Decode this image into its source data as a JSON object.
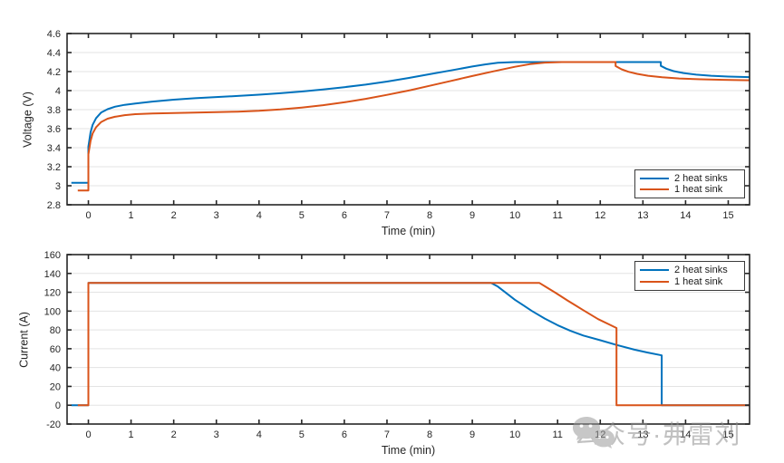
{
  "figure": {
    "background": "#ffffff"
  },
  "watermark": {
    "text": "公众号·弗雷刘",
    "icon": "wechat-bubbles-icon",
    "color": "#8f8f8f"
  },
  "chart_data": [
    {
      "type": "line",
      "title": "",
      "xlabel": "Time (min)",
      "ylabel": "Voltage (V)",
      "xlim": [
        -0.5,
        15.5
      ],
      "ylim": [
        2.8,
        4.6
      ],
      "xticks": [
        0,
        1,
        2,
        3,
        4,
        5,
        6,
        7,
        8,
        9,
        10,
        11,
        12,
        13,
        14,
        15
      ],
      "yticks": [
        2.8,
        3.0,
        3.2,
        3.4,
        3.6,
        3.8,
        4.0,
        4.2,
        4.4,
        4.6
      ],
      "ytick_labels": [
        "2.8",
        "3",
        "3.2",
        "3.4",
        "3.6",
        "3.8",
        "4",
        "4.2",
        "4.4",
        "4.6"
      ],
      "grid": "horizontal",
      "legend_position": "southeast",
      "series": [
        {
          "name": "2 heat sinks",
          "color": "#0072BD",
          "points": [
            [
              -0.4,
              3.03
            ],
            [
              0,
              3.03
            ],
            [
              0,
              3.41
            ],
            [
              0.05,
              3.56
            ],
            [
              0.1,
              3.64
            ],
            [
              0.18,
              3.71
            ],
            [
              0.3,
              3.77
            ],
            [
              0.45,
              3.805
            ],
            [
              0.62,
              3.83
            ],
            [
              0.85,
              3.85
            ],
            [
              1.1,
              3.865
            ],
            [
              1.5,
              3.885
            ],
            [
              2,
              3.905
            ],
            [
              2.5,
              3.92
            ],
            [
              3,
              3.932
            ],
            [
              3.5,
              3.944
            ],
            [
              4,
              3.957
            ],
            [
              4.5,
              3.972
            ],
            [
              5,
              3.99
            ],
            [
              5.5,
              4.012
            ],
            [
              6,
              4.036
            ],
            [
              6.5,
              4.063
            ],
            [
              7,
              4.095
            ],
            [
              7.5,
              4.132
            ],
            [
              8,
              4.172
            ],
            [
              8.5,
              4.212
            ],
            [
              9,
              4.253
            ],
            [
              9.3,
              4.275
            ],
            [
              9.6,
              4.292
            ],
            [
              10,
              4.3
            ],
            [
              13.42,
              4.3
            ],
            [
              13.42,
              4.26
            ],
            [
              13.55,
              4.23
            ],
            [
              13.72,
              4.205
            ],
            [
              13.95,
              4.185
            ],
            [
              14.25,
              4.168
            ],
            [
              14.6,
              4.156
            ],
            [
              15,
              4.148
            ],
            [
              15.5,
              4.142
            ]
          ]
        },
        {
          "name": "1 heat sink",
          "color": "#D95319",
          "points": [
            [
              -0.25,
              2.95
            ],
            [
              0,
              2.95
            ],
            [
              0,
              3.33
            ],
            [
              0.05,
              3.47
            ],
            [
              0.1,
              3.55
            ],
            [
              0.18,
              3.615
            ],
            [
              0.3,
              3.67
            ],
            [
              0.45,
              3.705
            ],
            [
              0.62,
              3.725
            ],
            [
              0.85,
              3.742
            ],
            [
              1.1,
              3.752
            ],
            [
              1.5,
              3.76
            ],
            [
              2,
              3.765
            ],
            [
              2.5,
              3.769
            ],
            [
              3,
              3.773
            ],
            [
              3.5,
              3.779
            ],
            [
              4,
              3.788
            ],
            [
              4.5,
              3.802
            ],
            [
              5,
              3.822
            ],
            [
              5.5,
              3.847
            ],
            [
              6,
              3.877
            ],
            [
              6.5,
              3.913
            ],
            [
              7,
              3.955
            ],
            [
              7.55,
              4.005
            ],
            [
              8,
              4.05
            ],
            [
              8.5,
              4.102
            ],
            [
              9,
              4.153
            ],
            [
              9.5,
              4.203
            ],
            [
              10,
              4.25
            ],
            [
              10.35,
              4.278
            ],
            [
              10.7,
              4.294
            ],
            [
              11.1,
              4.3
            ],
            [
              12.36,
              4.3
            ],
            [
              12.36,
              4.258
            ],
            [
              12.5,
              4.224
            ],
            [
              12.66,
              4.198
            ],
            [
              12.86,
              4.176
            ],
            [
              13.12,
              4.156
            ],
            [
              13.45,
              4.14
            ],
            [
              13.85,
              4.128
            ],
            [
              14.35,
              4.119
            ],
            [
              14.9,
              4.113
            ],
            [
              15.5,
              4.109
            ]
          ]
        }
      ]
    },
    {
      "type": "line",
      "title": "",
      "xlabel": "Time (min)",
      "ylabel": "Current (A)",
      "xlim": [
        -0.5,
        15.5
      ],
      "ylim": [
        -20,
        160
      ],
      "xticks": [
        0,
        1,
        2,
        3,
        4,
        5,
        6,
        7,
        8,
        9,
        10,
        11,
        12,
        13,
        14,
        15
      ],
      "yticks": [
        -20,
        0,
        20,
        40,
        60,
        80,
        100,
        120,
        140,
        160
      ],
      "ytick_labels": [
        "-20",
        "0",
        "20",
        "40",
        "60",
        "80",
        "100",
        "120",
        "140",
        "160"
      ],
      "grid": "horizontal",
      "legend_position": "northeast",
      "series": [
        {
          "name": "2 heat sinks",
          "color": "#0072BD",
          "points": [
            [
              -0.4,
              0
            ],
            [
              0,
              0
            ],
            [
              0,
              130
            ],
            [
              9.44,
              130
            ],
            [
              9.6,
              126
            ],
            [
              9.8,
              119
            ],
            [
              10,
              112
            ],
            [
              10.2,
              106
            ],
            [
              10.4,
              100
            ],
            [
              10.7,
              92
            ],
            [
              11,
              85
            ],
            [
              11.3,
              79
            ],
            [
              11.6,
              74
            ],
            [
              12,
              69
            ],
            [
              12.38,
              64
            ],
            [
              12.8,
              59
            ],
            [
              13.1,
              56
            ],
            [
              13.44,
              53
            ],
            [
              13.44,
              0
            ],
            [
              15.5,
              0
            ]
          ]
        },
        {
          "name": "1 heat sink",
          "color": "#D95319",
          "points": [
            [
              -0.25,
              0
            ],
            [
              0,
              0
            ],
            [
              0,
              130
            ],
            [
              10.57,
              130
            ],
            [
              10.75,
              125
            ],
            [
              10.95,
              119.5
            ],
            [
              11.24,
              111
            ],
            [
              11.6,
              101
            ],
            [
              11.95,
              91.5
            ],
            [
              12.2,
              86
            ],
            [
              12.38,
              82
            ],
            [
              12.38,
              0
            ],
            [
              15.5,
              0
            ]
          ]
        }
      ]
    }
  ]
}
